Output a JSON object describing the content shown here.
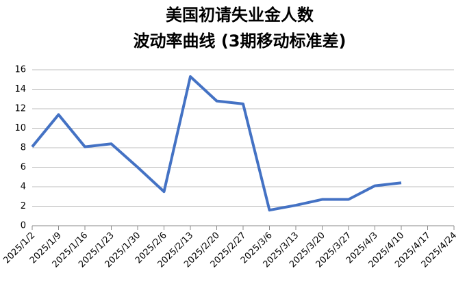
{
  "chart_data": {
    "type": "line",
    "title": "美国初请失业金人数",
    "subtitle": "波动率曲线 (3期移动标准差)",
    "categories": [
      "2025/1/2",
      "2025/1/9",
      "2025/1/16",
      "2025/1/23",
      "2025/1/30",
      "2025/2/6",
      "2025/2/13",
      "2025/2/20",
      "2025/2/27",
      "2025/3/6",
      "2025/3/13",
      "2025/3/20",
      "2025/3/27",
      "2025/4/3",
      "2025/4/10",
      "2025/4/17",
      "2025/4/24"
    ],
    "series": [
      {
        "color": "#4472c4",
        "values": [
          8.1,
          11.4,
          8.1,
          8.4,
          6.0,
          3.5,
          15.3,
          12.8,
          12.5,
          1.6,
          2.1,
          2.7,
          2.7,
          4.1,
          4.4,
          null,
          null
        ]
      }
    ],
    "ylim": [
      0,
      16
    ],
    "yticks": [
      0,
      2,
      4,
      6,
      8,
      10,
      12,
      14,
      16
    ],
    "grid": true
  }
}
